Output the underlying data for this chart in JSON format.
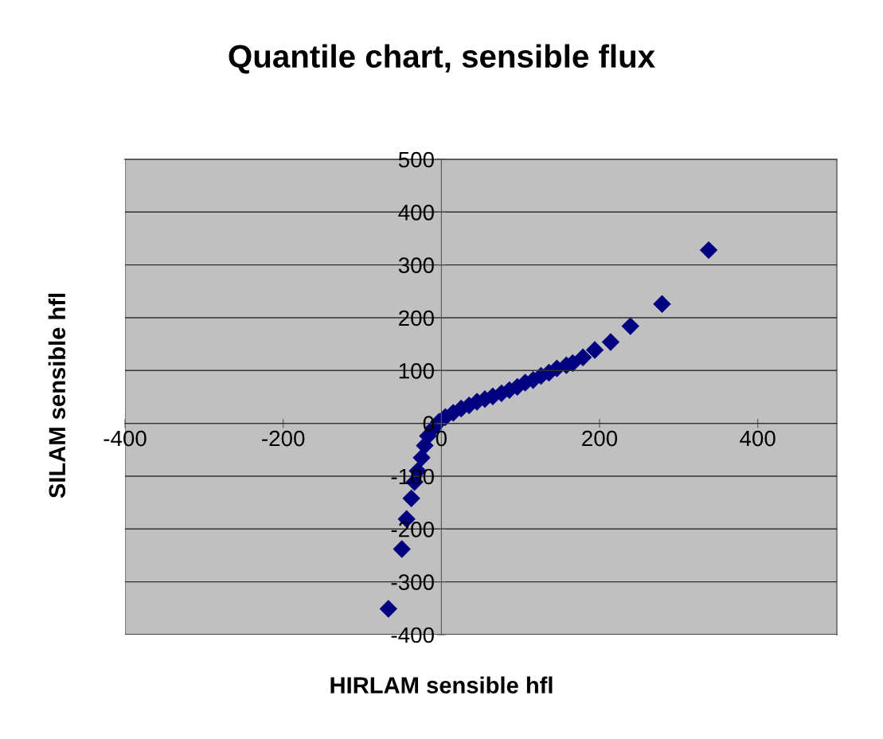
{
  "chart_data": {
    "type": "scatter",
    "title": "Quantile chart, sensible flux",
    "xlabel": "HIRLAM sensible hfl",
    "ylabel": "SILAM sensible hfl",
    "series": [
      {
        "color": "#000080",
        "x": [
          -67,
          -50,
          -44,
          -38,
          -34,
          -30,
          -25,
          -21,
          -17,
          -10,
          -3,
          5,
          15,
          25,
          35,
          45,
          55,
          65,
          76,
          86,
          96,
          106,
          116,
          126,
          136,
          146,
          158,
          166,
          179,
          194,
          214,
          239,
          279,
          338
        ],
        "values": [
          -351,
          -238,
          -181,
          -142,
          -111,
          -90,
          -65,
          -42,
          -24,
          -9,
          3,
          12,
          20,
          28,
          34,
          41,
          46,
          51,
          57,
          63,
          69,
          77,
          82,
          90,
          96,
          104,
          110,
          114,
          125,
          139,
          154,
          184,
          226,
          328
        ]
      }
    ],
    "marker": "diamond",
    "xlim": [
      -400,
      500
    ],
    "xticks": [
      -400,
      -200,
      0,
      200,
      400
    ],
    "ylim": [
      -400,
      500
    ],
    "yticks": [
      -400,
      -300,
      -200,
      -100,
      0,
      100,
      200,
      300,
      400,
      500
    ],
    "grid": "y"
  }
}
